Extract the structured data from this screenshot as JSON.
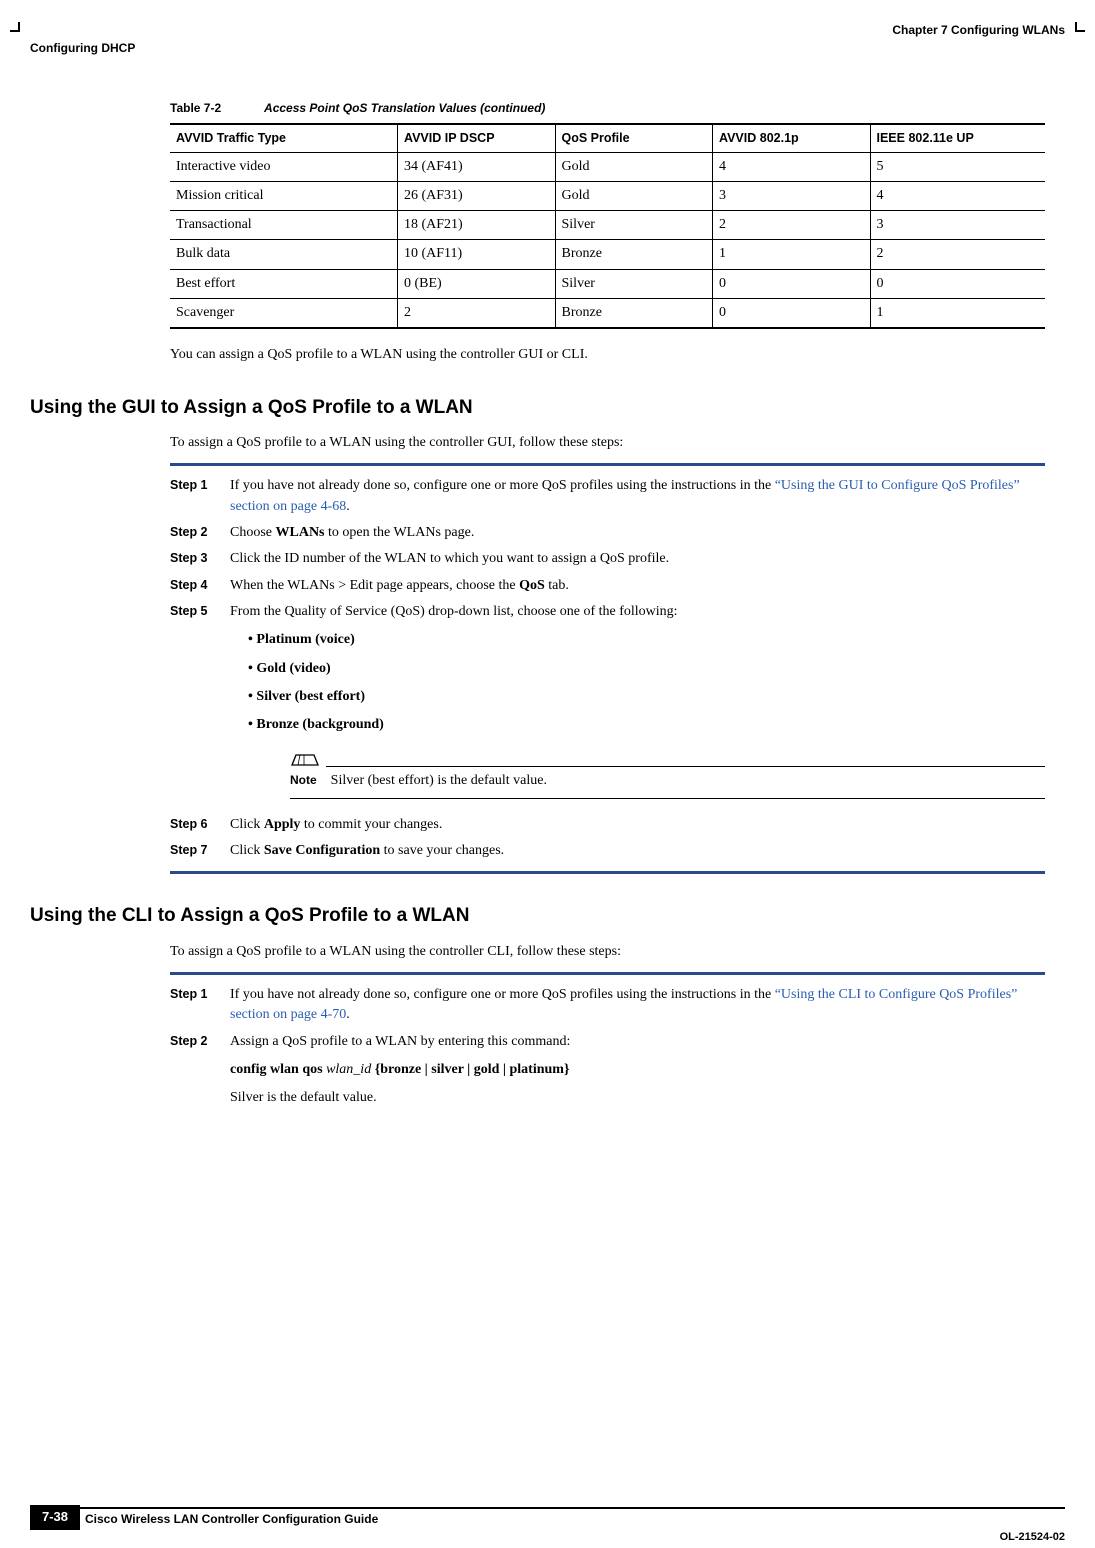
{
  "header": {
    "chapter": "Chapter 7      Configuring WLANs",
    "section": "Configuring DHCP"
  },
  "table": {
    "caption_num": "Table 7-2",
    "caption_title": "Access Point QoS Translation Values (continued)",
    "columns": [
      "AVVID Traffic Type",
      "AVVID IP DSCP",
      "QoS Profile",
      "AVVID 802.1p",
      "IEEE 802.11e UP"
    ],
    "col_widths_pct": [
      26,
      18,
      18,
      18,
      20
    ],
    "rows": [
      [
        "Interactive video",
        "34 (AF41)",
        "Gold",
        "4",
        "5"
      ],
      [
        "Mission critical",
        "26 (AF31)",
        "Gold",
        "3",
        "4"
      ],
      [
        "Transactional",
        "18 (AF21)",
        "Silver",
        "2",
        "3"
      ],
      [
        "Bulk data",
        "10 (AF11)",
        "Bronze",
        "1",
        "2"
      ],
      [
        "Best effort",
        "0 (BE)",
        "Silver",
        "0",
        "0"
      ],
      [
        "Scavenger",
        "2",
        "Bronze",
        "0",
        "1"
      ]
    ]
  },
  "intro_para": "You can assign a QoS profile to a WLAN using the controller GUI or CLI.",
  "gui_section": {
    "heading": "Using the GUI to Assign a QoS Profile to a WLAN",
    "lead": "To assign a QoS profile to a WLAN using the controller GUI, follow these steps:",
    "steps": {
      "s1_pre": "If you have not already done so, configure one or more QoS profiles using the instructions in the ",
      "s1_link": "“Using the GUI to Configure QoS Profiles” section on page 4-68",
      "s1_post": ".",
      "s2_pre": "Choose ",
      "s2_bold": "WLANs",
      "s2_post": " to open the WLANs page.",
      "s3": "Click the ID number of the WLAN to which you want to assign a QoS profile.",
      "s4_pre": "When the WLANs > Edit page appears, choose the ",
      "s4_bold": "QoS",
      "s4_post": " tab.",
      "s5": "From the Quality of Service (QoS) drop-down list, choose one of the following:",
      "s5_items": [
        "Platinum (voice)",
        "Gold (video)",
        "Silver (best effort)",
        "Bronze (background)"
      ],
      "note_label": "Note",
      "note_text": "Silver (best effort) is the default value.",
      "s6_pre": "Click ",
      "s6_bold": "Apply",
      "s6_post": " to commit your changes.",
      "s7_pre": "Click ",
      "s7_bold": "Save Configuration",
      "s7_post": " to save your changes."
    },
    "step_labels": [
      "Step 1",
      "Step 2",
      "Step 3",
      "Step 4",
      "Step 5",
      "Step 6",
      "Step 7"
    ]
  },
  "cli_section": {
    "heading": "Using the CLI to Assign a QoS Profile to a WLAN",
    "lead": "To assign a QoS profile to a WLAN using the controller CLI, follow these steps:",
    "s1_pre": "If you have not already done so, configure one or more QoS profiles using the instructions in the ",
    "s1_link": "“Using the CLI to Configure QoS Profiles” section on page 4-70",
    "s1_post": ".",
    "s2_line1": "Assign a QoS profile to a WLAN by entering this command:",
    "s2_cmd_pre": "config wlan qos ",
    "s2_cmd_arg": "wlan_id",
    "s2_cmd_post": " {bronze | silver | gold | platinum}",
    "s2_line3": "Silver is the default value.",
    "step_labels": [
      "Step 1",
      "Step 2"
    ]
  },
  "footer": {
    "title": "Cisco Wireless LAN Controller Configuration Guide",
    "page": "7-38",
    "docid": "OL-21524-02"
  },
  "colors": {
    "rule_blue": "#274b8b",
    "link": "#2a5db0"
  }
}
